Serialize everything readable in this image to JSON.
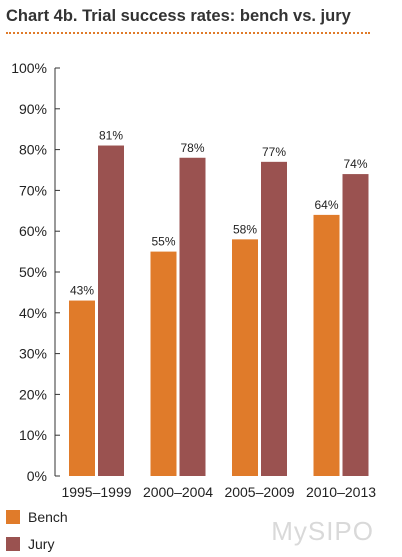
{
  "title": "Chart 4b. Trial success rates: bench vs. jury",
  "colors": {
    "bench": "#e07b2a",
    "jury": "#9a5250",
    "accent_rule": "#e07b2a"
  },
  "watermark": "MySIPO",
  "chart_data": {
    "type": "bar",
    "categories": [
      "1995–1999",
      "2000–2004",
      "2005–2009",
      "2010–2013"
    ],
    "series": [
      {
        "name": "Bench",
        "values": [
          43,
          55,
          58,
          64
        ],
        "labels": [
          "43%",
          "55%",
          "58%",
          "64%"
        ],
        "color": "#e07b2a"
      },
      {
        "name": "Jury",
        "values": [
          81,
          78,
          77,
          74
        ],
        "labels": [
          "81%",
          "78%",
          "77%",
          "74%"
        ],
        "color": "#9a5250"
      }
    ],
    "yticks": [
      "0%",
      "10%",
      "20%",
      "30%",
      "40%",
      "50%",
      "60%",
      "70%",
      "80%",
      "90%",
      "100%"
    ],
    "ylim": [
      0,
      100
    ],
    "grid": false,
    "legend_position": "bottom-left"
  }
}
